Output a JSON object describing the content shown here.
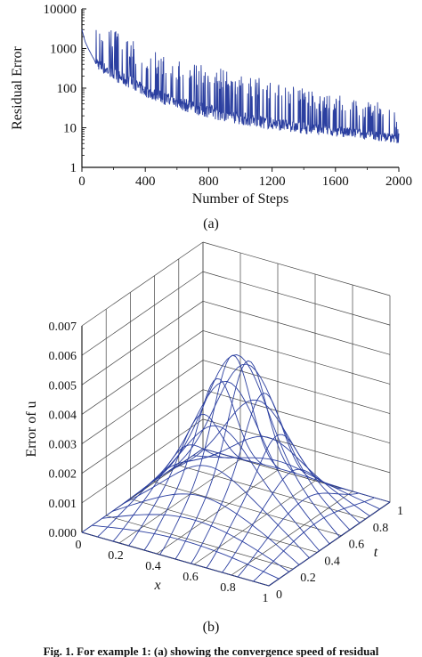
{
  "chart_data": [
    {
      "type": "line",
      "xlabel": "Number of Steps",
      "ylabel": "Residual Error",
      "yscale": "log",
      "xlim": [
        0,
        2000
      ],
      "ylim": [
        1,
        10000
      ],
      "xticks": [
        "0",
        "400",
        "800",
        "1200",
        "1600",
        "2000"
      ],
      "yticks": [
        "1",
        "10",
        "100",
        "1000",
        "10000"
      ],
      "color": "#2b3fa0",
      "grid": false,
      "series": [
        {
          "x": [
            0,
            20,
            40,
            60,
            80,
            100,
            120,
            160,
            200,
            300,
            400,
            500,
            600,
            700,
            800,
            900,
            1000,
            1100,
            1200,
            1300,
            1400,
            1500,
            1600,
            1700,
            1800,
            1900,
            1960,
            2000
          ],
          "baseline": [
            3000,
            1500,
            1000,
            700,
            500,
            300,
            250,
            200,
            150,
            100,
            60,
            40,
            30,
            22,
            18,
            14,
            12,
            10,
            9,
            8,
            7,
            6.5,
            6,
            5.5,
            5,
            4.5,
            4.2,
            4
          ],
          "peaks": [
            3000,
            3000,
            2500,
            1500,
            2000,
            5000,
            4000,
            3500,
            3000,
            2000,
            1000,
            800,
            600,
            500,
            400,
            300,
            250,
            200,
            150,
            120,
            100,
            80,
            70,
            60,
            50,
            45,
            40,
            10
          ]
        }
      ],
      "caption": "(a)"
    },
    {
      "type": "surface",
      "xlabel": "x",
      "ylabel": "t",
      "zlabel": "Error of u",
      "xlim": [
        0,
        1
      ],
      "ylim": [
        0,
        1
      ],
      "zlim": [
        0,
        0.007
      ],
      "xticks": [
        "0",
        "0.2",
        "0.4",
        "0.6",
        "0.8",
        "1"
      ],
      "yticks": [
        "0",
        "0.2",
        "0.4",
        "0.6",
        "0.8",
        "1"
      ],
      "zticks": [
        "0.000",
        "0.001",
        "0.002",
        "0.003",
        "0.004",
        "0.005",
        "0.006",
        "0.007"
      ],
      "grid": true,
      "color": "#2b3fa0",
      "peak_error": 0.0053,
      "caption": "(b)"
    }
  ],
  "figure_caption": "Fig. 1. For example 1: (a) showing the convergence speed of residual"
}
